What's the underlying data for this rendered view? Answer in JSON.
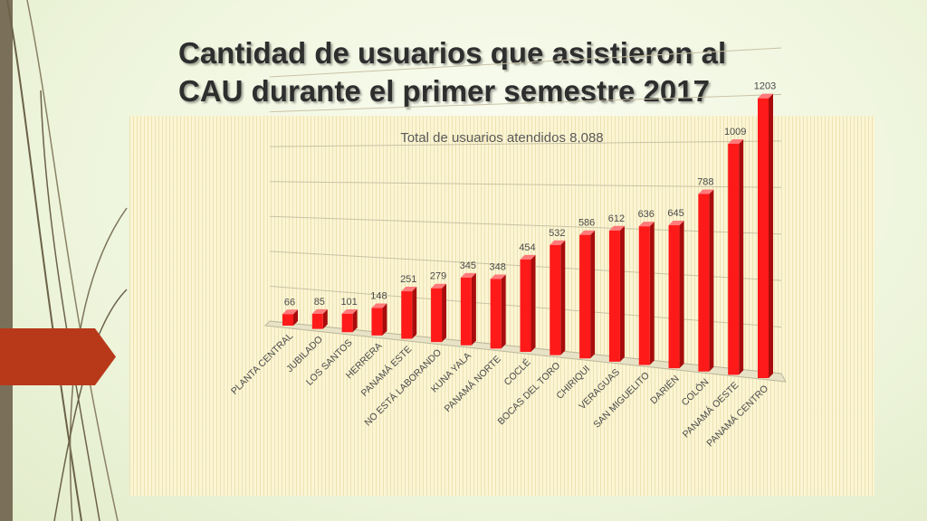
{
  "slide": {
    "title_line1": "Cantidad de usuarios que asistieron al",
    "title_line2": "CAU durante el primer semestre 2017"
  },
  "colors": {
    "bar_front": "#ff1a1a",
    "bar_side": "#a80c0c",
    "bar_top": "#ff7a7a",
    "accent_tab": "#b8391a",
    "side_bar": "#7a7059"
  },
  "chart_data": {
    "type": "bar",
    "style": "3d-perspective",
    "title": "Total de usuarios atendidos 8,088",
    "xlabel": "",
    "ylabel": "",
    "ylim": [
      0,
      1400
    ],
    "grid": true,
    "legend": "none",
    "categories": [
      "PLANTA CENTRAL",
      "JUBILADO",
      "LOS SANTOS",
      "HERRERA",
      "PANAMÁ ESTE",
      "NO ESTÁ LABORANDO",
      "KUNA YALA",
      "PANAMÁ NORTE",
      "COCLÉ",
      "BOCAS DEL TORO",
      "CHIRIQUI",
      "VERAGUAS",
      "SAN MIGUELITO",
      "DARIÉN",
      "COLÓN",
      "PANAMÁ OESTE",
      "PANAMÁ CENTRO"
    ],
    "values": [
      66,
      85,
      101,
      148,
      251,
      279,
      345,
      348,
      454,
      532,
      586,
      612,
      636,
      645,
      788,
      1009,
      1203
    ]
  }
}
